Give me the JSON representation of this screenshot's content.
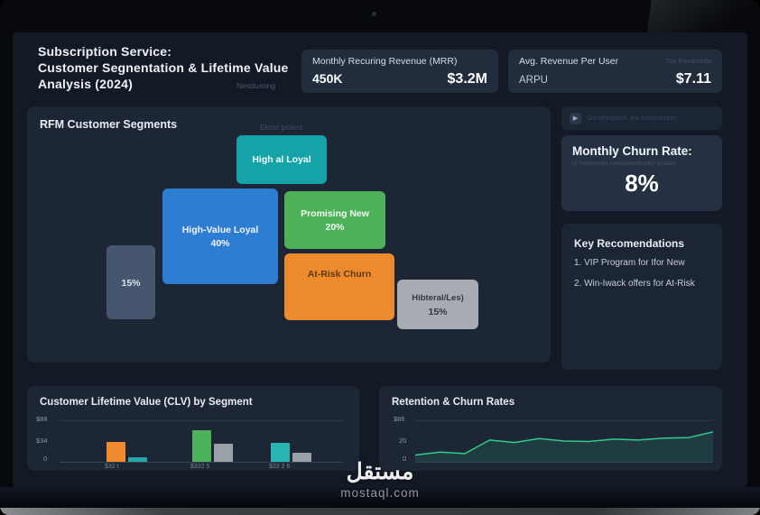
{
  "header": {
    "title_line1": "Subscription Service:",
    "title_line2": "Customer Segnentation & Lifetime Value",
    "title_line3": "Analysis (2024)",
    "note": "Nesdusong"
  },
  "kpi_mrr": {
    "label": "Monthly Recuring Revenue (MRR)",
    "value_secondary": "450K",
    "value_primary": "$3.2M"
  },
  "kpi_arpu": {
    "label": "Avg. Revenue Per User",
    "note": "7ov Fondrnndo",
    "sublabel": "ARPU",
    "value": "$7.11"
  },
  "segments": {
    "title": "RFM Customer Segments",
    "note": "Ekost potent",
    "blocks": [
      {
        "label": "High al Loyal",
        "value": "",
        "color": "#16a3a8",
        "text_color": "#f2fbfb"
      },
      {
        "label": "High-Value Loyal",
        "value": "40%",
        "color": "#2d7dd2",
        "text_color": "#f2f7fd"
      },
      {
        "label": "Promising New",
        "value": "20%",
        "color": "#4cb158",
        "text_color": "#f3faf3"
      },
      {
        "label": "At-Risk Churn",
        "value": "",
        "color": "#ed8a2d",
        "text_color": "#5d3a10"
      },
      {
        "label": "Hibteral/Les)",
        "value": "15%",
        "color": "#a7abb2",
        "text_color": "#33383f"
      },
      {
        "label": "",
        "value": "15%",
        "color": "#47566e",
        "text_color": "#dde3ec"
      }
    ]
  },
  "churn": {
    "badge_icon": "play-icon",
    "badge_note": "Geodteddrolr ala bodtedudee",
    "title": "Monthly Churn Rate:",
    "note": "ld fondonidel ilanellantdfnodul guador",
    "value": "8%"
  },
  "recommendations": {
    "title": "Key Recomendations",
    "items": [
      "1. VIP Program for Ifor New",
      "2. Win-Iwack offers for At-Risk"
    ]
  },
  "chart_data": [
    {
      "type": "bar",
      "title": "Customer Lifetime Value (CLV) by Segment",
      "ylim": [
        0,
        88
      ],
      "ytick_labels": [
        "$88",
        "$34",
        "0"
      ],
      "categories": [
        "$32 t",
        "$332 5",
        "$33 2 6"
      ],
      "series": [
        {
          "name": "clv-primary",
          "values": [
            40,
            64,
            38
          ],
          "colors": [
            "#ef8b2e",
            "#4cb158",
            "#2ab5b5"
          ]
        },
        {
          "name": "clv-secondary",
          "values": [
            9,
            37,
            18
          ],
          "colors": [
            "#27a7a7",
            "#9aa0a8",
            "#9aa0a8"
          ]
        }
      ],
      "grid": true,
      "legend": false
    },
    {
      "type": "line",
      "title": "Retention & Churn Rates",
      "ylim": [
        0,
        86
      ],
      "ytick_labels": [
        "$86",
        "20",
        "0"
      ],
      "x": [
        0,
        1,
        2,
        3,
        4,
        5,
        6,
        7,
        8,
        9,
        10,
        11,
        12
      ],
      "values": [
        14,
        20,
        17,
        45,
        40,
        48,
        43,
        42,
        47,
        45,
        49,
        50,
        62
      ],
      "color": "#34c98e",
      "fill": "rgba(52,201,142,0.14)",
      "grid": true,
      "legend": false
    }
  ],
  "watermark": {
    "arabic": "مستقل",
    "domain": "mostaql.com"
  },
  "colors": {
    "screen_bg": "#131a25",
    "panel_bg": "#1d2634",
    "card_bg": "#212c3c",
    "accent_teal": "#16a3a8",
    "accent_blue": "#2d7dd2",
    "accent_green": "#4cb158",
    "accent_orange": "#ed8a2d"
  }
}
